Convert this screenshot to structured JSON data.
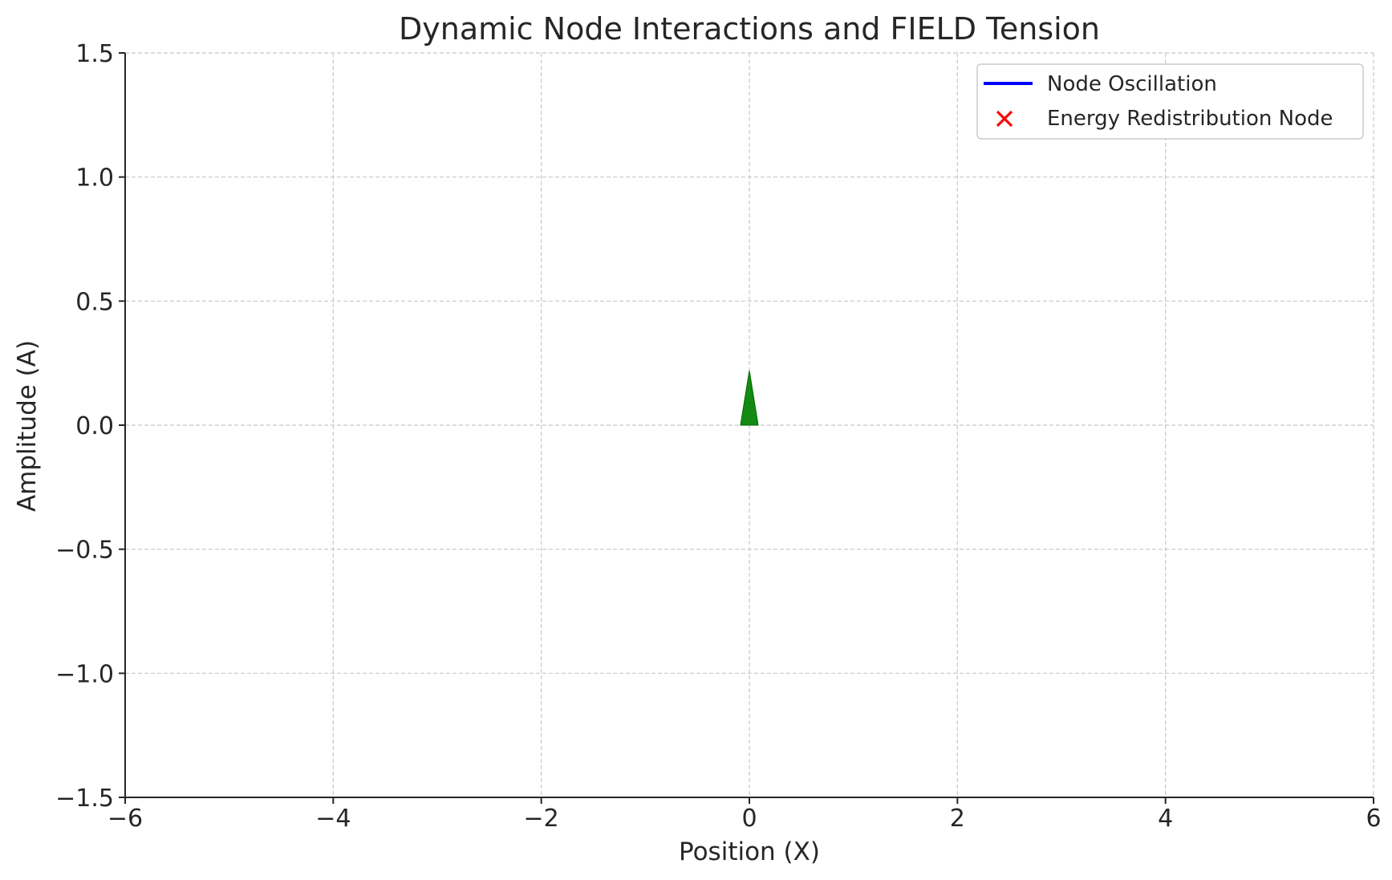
{
  "chart_data": {
    "type": "line",
    "title": "Dynamic Node Interactions and FIELD Tension",
    "xlabel": "Position (X)",
    "ylabel": "Amplitude (A)",
    "xlim": [
      -6,
      6
    ],
    "ylim": [
      -1.5,
      1.5
    ],
    "x_ticks": [
      -6,
      -4,
      -2,
      0,
      2,
      4,
      6
    ],
    "y_ticks": [
      -1.5,
      -1.0,
      -0.5,
      0.0,
      0.5,
      1.0,
      1.5
    ],
    "x_tick_labels": [
      "−6",
      "−4",
      "−2",
      "0",
      "2",
      "4",
      "6"
    ],
    "y_tick_labels": [
      "−1.5",
      "−1.0",
      "−0.5",
      "0.0",
      "0.5",
      "1.0",
      "1.5"
    ],
    "grid": true,
    "legend_position": "top-right",
    "series": [
      {
        "name": "Node Oscillation",
        "kind": "line",
        "color": "#0000ff",
        "x": [],
        "y": []
      },
      {
        "name": "Energy Redistribution Node",
        "kind": "scatter",
        "marker": "x",
        "color": "#ff0000",
        "x": [],
        "y": []
      }
    ],
    "arrows": [
      {
        "x": 0,
        "y": 0,
        "dx": 0,
        "dy": 0.22,
        "color": "#008000"
      }
    ]
  }
}
